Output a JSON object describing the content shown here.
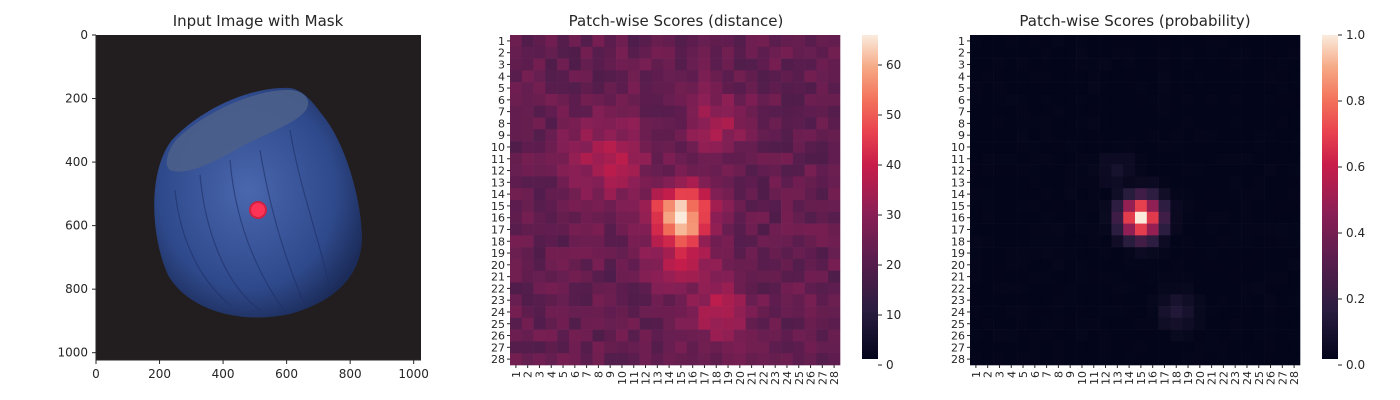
{
  "chart_data": [
    {
      "type": "image",
      "title": "Input Image with Mask",
      "xlim": [
        0,
        1023
      ],
      "ylim": [
        1023,
        0
      ],
      "xticks": [
        0,
        200,
        400,
        600,
        800,
        1000
      ],
      "yticks": [
        0,
        200,
        400,
        600,
        800,
        1000
      ],
      "image_content": "blue hazelnut on dark background",
      "mask_color": "#ff3355",
      "mask_center": [
        512,
        552
      ]
    },
    {
      "type": "heatmap",
      "title": "Patch-wise Scores (distance)",
      "rows": 28,
      "cols": 28,
      "row_labels": [
        "1",
        "2",
        "3",
        "4",
        "5",
        "6",
        "7",
        "8",
        "9",
        "10",
        "11",
        "12",
        "13",
        "14",
        "15",
        "16",
        "17",
        "18",
        "19",
        "20",
        "21",
        "22",
        "23",
        "24",
        "25",
        "26",
        "27",
        "28"
      ],
      "col_labels": [
        "1",
        "2",
        "3",
        "4",
        "5",
        "6",
        "7",
        "8",
        "9",
        "10",
        "11",
        "12",
        "13",
        "14",
        "15",
        "16",
        "17",
        "18",
        "19",
        "20",
        "21",
        "22",
        "23",
        "24",
        "25",
        "26",
        "27",
        "28"
      ],
      "vmin": 0,
      "vmax": 66,
      "colorbar_ticks": [
        0,
        10,
        20,
        30,
        40,
        50,
        60
      ],
      "colormap": "rocket",
      "base_value": 22,
      "hotspots": [
        {
          "row": 16,
          "col": 15,
          "peak": 66,
          "spread": 1.8
        },
        {
          "row": 11,
          "col": 9,
          "peak": 36,
          "spread": 2.4
        },
        {
          "row": 8,
          "col": 18,
          "peak": 34,
          "spread": 1.8
        },
        {
          "row": 24,
          "col": 18,
          "peak": 36,
          "spread": 1.8
        },
        {
          "row": 19,
          "col": 15,
          "peak": 40,
          "spread": 2.0
        }
      ]
    },
    {
      "type": "heatmap",
      "title": "Patch-wise Scores (probability)",
      "rows": 28,
      "cols": 28,
      "row_labels": [
        "1",
        "2",
        "3",
        "4",
        "5",
        "6",
        "7",
        "8",
        "9",
        "10",
        "11",
        "12",
        "13",
        "14",
        "15",
        "16",
        "17",
        "18",
        "19",
        "20",
        "21",
        "22",
        "23",
        "24",
        "25",
        "26",
        "27",
        "28"
      ],
      "col_labels": [
        "1",
        "2",
        "3",
        "4",
        "5",
        "6",
        "7",
        "8",
        "9",
        "10",
        "11",
        "12",
        "13",
        "14",
        "15",
        "16",
        "17",
        "18",
        "19",
        "20",
        "21",
        "22",
        "23",
        "24",
        "25",
        "26",
        "27",
        "28"
      ],
      "vmin": 0.0,
      "vmax": 1.0,
      "colorbar_ticks": [
        0.0,
        0.2,
        0.4,
        0.6,
        0.8,
        1.0
      ],
      "colorbar_tick_labels": [
        "0.0",
        "0.2",
        "0.4",
        "0.6",
        "0.8",
        "1.0"
      ],
      "colormap": "rocket",
      "base_value": 0.0,
      "hotspots": [
        {
          "row": 16,
          "col": 15,
          "peak": 1.0,
          "spread": 1.15
        },
        {
          "row": 24,
          "col": 18,
          "peak": 0.12,
          "spread": 1.0
        },
        {
          "row": 12,
          "col": 13,
          "peak": 0.08,
          "spread": 1.0
        }
      ]
    }
  ]
}
